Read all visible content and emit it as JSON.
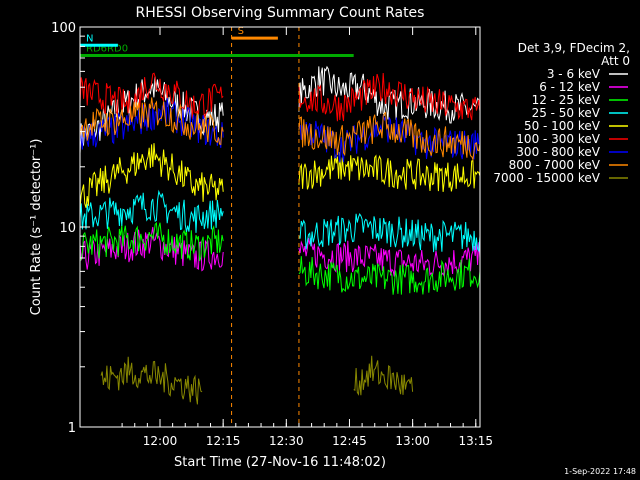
{
  "chart_data": {
    "type": "line",
    "title": "RHESSI Observing Summary Count Rates",
    "xlabel": "Start Time (27-Nov-16 11:48:02)",
    "ylabel": "Count Rate (s⁻¹ detector⁻¹)",
    "y_scale": "log",
    "ylim": [
      1,
      100
    ],
    "xlim_minutes": [
      -7,
      88
    ],
    "x_ticks": [
      {
        "t": 12,
        "label": "12:00"
      },
      {
        "t": 27,
        "label": "12:15"
      },
      {
        "t": 42,
        "label": "12:30"
      },
      {
        "t": 57,
        "label": "12:45"
      },
      {
        "t": 72,
        "label": "13:00"
      },
      {
        "t": 87,
        "label": "13:15"
      }
    ],
    "y_ticks": [
      {
        "v": 1,
        "label": "1"
      },
      {
        "v": 10,
        "label": "10"
      },
      {
        "v": 100,
        "label": "100"
      }
    ],
    "legend_header": [
      "Det 3,9, FDecim 2,",
      "Att 0"
    ],
    "legend_placement": "right",
    "gap": [
      29,
      45
    ],
    "series": [
      {
        "name": "3 - 6 keV",
        "color": "#ffffff",
        "segs": [
          [
            [
              -7,
              28
            ],
            [
              -2,
              32
            ],
            [
              3,
              40
            ],
            [
              10,
              50
            ],
            [
              15,
              42
            ],
            [
              22,
              35
            ],
            [
              27,
              36
            ]
          ],
          [
            [
              45,
              45
            ],
            [
              50,
              55
            ],
            [
              55,
              48
            ],
            [
              60,
              50
            ],
            [
              65,
              40
            ],
            [
              72,
              42
            ],
            [
              80,
              40
            ],
            [
              88,
              38
            ]
          ]
        ]
      },
      {
        "name": "6 - 12 keV",
        "color": "#ff00ff",
        "segs": [
          [
            [
              -7,
              7
            ],
            [
              10,
              8.5
            ],
            [
              20,
              7
            ],
            [
              27,
              7.5
            ]
          ],
          [
            [
              45,
              7.5
            ],
            [
              60,
              7
            ],
            [
              75,
              6.5
            ],
            [
              88,
              7
            ]
          ]
        ]
      },
      {
        "name": "12 - 25 keV",
        "color": "#00ff00",
        "segs": [
          [
            [
              -7,
              8
            ],
            [
              10,
              9
            ],
            [
              20,
              8
            ],
            [
              27,
              8.5
            ]
          ],
          [
            [
              45,
              6
            ],
            [
              60,
              5.5
            ],
            [
              75,
              5.5
            ],
            [
              88,
              6
            ]
          ]
        ]
      },
      {
        "name": "25 - 50 keV",
        "color": "#00ffff",
        "segs": [
          [
            [
              -7,
              11
            ],
            [
              10,
              13
            ],
            [
              20,
              11
            ],
            [
              27,
              12
            ]
          ],
          [
            [
              45,
              9
            ],
            [
              60,
              10
            ],
            [
              75,
              9
            ],
            [
              88,
              9
            ]
          ]
        ]
      },
      {
        "name": "50 - 100 keV",
        "color": "#ffff00",
        "segs": [
          [
            [
              -7,
              14
            ],
            [
              5,
              20
            ],
            [
              10,
              23
            ],
            [
              20,
              16
            ],
            [
              27,
              15
            ]
          ],
          [
            [
              45,
              18
            ],
            [
              55,
              20
            ],
            [
              65,
              19
            ],
            [
              75,
              18
            ],
            [
              88,
              18
            ]
          ]
        ]
      },
      {
        "name": "100 - 300 keV",
        "color": "#ff0000",
        "segs": [
          [
            [
              -7,
              48
            ],
            [
              5,
              40
            ],
            [
              10,
              55
            ],
            [
              20,
              40
            ],
            [
              27,
              45
            ]
          ],
          [
            [
              45,
              45
            ],
            [
              55,
              40
            ],
            [
              65,
              50
            ],
            [
              75,
              42
            ],
            [
              88,
              38
            ]
          ]
        ]
      },
      {
        "name": "300 - 800 keV",
        "color": "#0000ff",
        "segs": [
          [
            [
              -7,
              28
            ],
            [
              5,
              32
            ],
            [
              12,
              38
            ],
            [
              20,
              32
            ],
            [
              27,
              28
            ]
          ],
          [
            [
              45,
              32
            ],
            [
              55,
              25
            ],
            [
              65,
              32
            ],
            [
              75,
              26
            ],
            [
              88,
              26
            ]
          ]
        ]
      },
      {
        "name": "800 - 7000 keV",
        "color": "#ff8800",
        "segs": [
          [
            [
              -7,
              32
            ],
            [
              5,
              35
            ],
            [
              12,
              38
            ],
            [
              20,
              32
            ],
            [
              27,
              30
            ]
          ],
          [
            [
              45,
              30
            ],
            [
              55,
              27
            ],
            [
              65,
              32
            ],
            [
              75,
              27
            ],
            [
              88,
              26
            ]
          ]
        ]
      },
      {
        "name": "7000 - 15000 keV",
        "color": "#888800",
        "segs": [
          [
            [
              -2,
              1.7
            ],
            [
              5,
              1.9
            ],
            [
              15,
              1.7
            ],
            [
              22,
              1.5
            ]
          ],
          [
            [
              58,
              1.6
            ],
            [
              62,
              1.9
            ],
            [
              68,
              1.7
            ],
            [
              72,
              1.5
            ]
          ]
        ]
      }
    ],
    "annotations": [
      {
        "label": "RD6",
        "color": "#00aa00",
        "t0": -7,
        "t1": 27,
        "level": 72
      },
      {
        "label": "RD0",
        "color": "#00aa00",
        "t0": -2,
        "t1": 58,
        "level": 72
      },
      {
        "label": "N",
        "color": "#00ffff",
        "t0": -7,
        "t1": 2,
        "level": 81
      },
      {
        "label": "S",
        "color": "#ff8800",
        "t0": 29,
        "t1": 40,
        "level": 88
      }
    ]
  },
  "timestamp": "1-Sep-2022 17:48"
}
